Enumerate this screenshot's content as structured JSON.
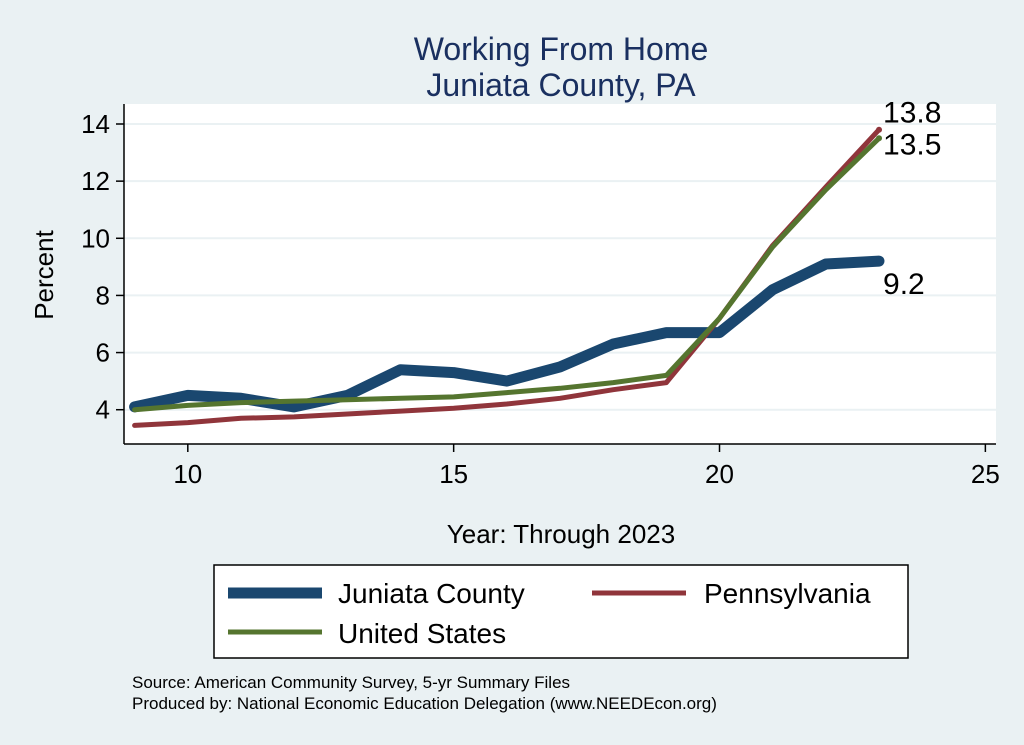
{
  "chart_data": {
    "type": "line",
    "title": [
      "Working From Home",
      "Juniata County, PA"
    ],
    "xlabel": "Year: Through 2023",
    "ylabel": "Percent",
    "xlim": [
      8.8,
      25.2
    ],
    "ylim": [
      2.8,
      14.7
    ],
    "xticks": [
      10,
      15,
      20,
      25
    ],
    "yticks": [
      4,
      6,
      8,
      10,
      12,
      14
    ],
    "grid": "horizontal",
    "legend_position": "bottom",
    "x": [
      9,
      10,
      11,
      12,
      13,
      14,
      15,
      16,
      17,
      18,
      19,
      20,
      21,
      22,
      23
    ],
    "series": [
      {
        "name": "Juniata County",
        "color": "#1a476f",
        "values": [
          4.1,
          4.5,
          4.4,
          4.1,
          4.5,
          5.4,
          5.3,
          5.0,
          5.5,
          6.3,
          6.7,
          6.7,
          8.2,
          9.1,
          9.2
        ],
        "end_label": "9.2"
      },
      {
        "name": "Pennsylvania",
        "color": "#90353b",
        "values": [
          3.45,
          3.55,
          3.7,
          3.75,
          3.85,
          3.95,
          4.05,
          4.2,
          4.4,
          4.7,
          4.95,
          7.2,
          9.75,
          11.8,
          13.8
        ],
        "end_label": "13.8"
      },
      {
        "name": "United States",
        "color": "#55752f",
        "values": [
          4.0,
          4.15,
          4.25,
          4.3,
          4.35,
          4.4,
          4.45,
          4.6,
          4.75,
          4.95,
          5.2,
          7.2,
          9.7,
          11.7,
          13.5
        ],
        "end_label": "13.5"
      }
    ]
  },
  "source_note": {
    "line1": "Source: American Community Survey, 5-yr Summary Files",
    "line2": "Produced by: National Economic Education Delegation (www.NEEDEcon.org)"
  }
}
